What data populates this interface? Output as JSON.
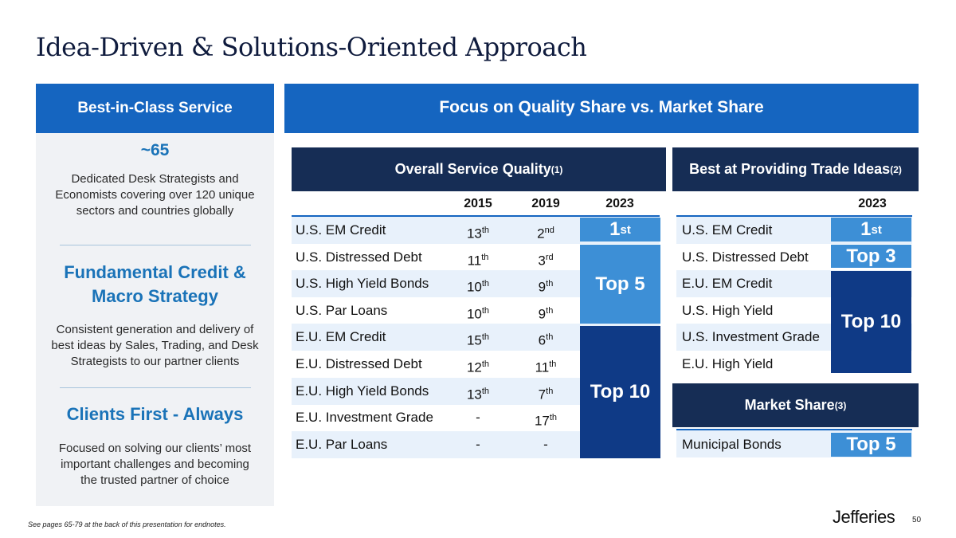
{
  "title": "Idea-Driven & Solutions-Oriented Approach",
  "left": {
    "header": "Best-in-Class Service",
    "sections": [
      {
        "heading": "~65",
        "text": "Dedicated Desk Strategists and Economists covering over 120 unique sectors and countries globally"
      },
      {
        "heading": "Fundamental Credit & Macro Strategy",
        "text": "Consistent generation and delivery of best ideas by Sales, Trading, and Desk Strategists to our partner clients"
      },
      {
        "heading": "Clients First - Always",
        "text": "Focused on solving our clients’ most important challenges and becoming the trusted partner of choice"
      }
    ]
  },
  "right": {
    "header": "Focus on Quality Share vs. Market Share",
    "overall": {
      "title": "Overall Service Quality",
      "note": "(1)",
      "years": [
        "2015",
        "2019",
        "2023"
      ],
      "rows": [
        {
          "label": "U.S. EM Credit",
          "y2015": "13",
          "s2015": "th",
          "y2019": "2",
          "s2019": "nd"
        },
        {
          "label": "U.S. Distressed Debt",
          "y2015": "11",
          "s2015": "th",
          "y2019": "3",
          "s2019": "rd"
        },
        {
          "label": "U.S. High Yield Bonds",
          "y2015": "10",
          "s2015": "th",
          "y2019": "9",
          "s2019": "th"
        },
        {
          "label": "U.S. Par Loans",
          "y2015": "10",
          "s2015": "th",
          "y2019": "9",
          "s2019": "th"
        },
        {
          "label": "E.U. EM Credit",
          "y2015": "15",
          "s2015": "th",
          "y2019": "6",
          "s2019": "th"
        },
        {
          "label": "E.U. Distressed Debt",
          "y2015": "12",
          "s2015": "th",
          "y2019": "11",
          "s2019": "th"
        },
        {
          "label": "E.U. High Yield Bonds",
          "y2015": "13",
          "s2015": "th",
          "y2019": "7",
          "s2019": "th"
        },
        {
          "label": "E.U. Investment Grade",
          "y2015": "-",
          "s2015": "",
          "y2019": "17",
          "s2019": "th"
        },
        {
          "label": "E.U. Par Loans",
          "y2015": "-",
          "s2015": "",
          "y2019": "-",
          "s2019": ""
        }
      ],
      "badges": {
        "first": "1",
        "first_sup": "st",
        "top5": "Top 5",
        "top10": "Top 10"
      }
    },
    "ideas": {
      "title": "Best at Providing Trade Ideas",
      "note": "(2)",
      "year": "2023",
      "rows": [
        "U.S. EM Credit",
        "U.S. Distressed Debt",
        "E.U. EM Credit",
        "U.S. High Yield",
        "U.S. Investment Grade",
        "E.U. High Yield"
      ],
      "badges": {
        "first": "1",
        "first_sup": "st",
        "top3": "Top 3",
        "top10": "Top 10"
      }
    },
    "market": {
      "title": "Market Share",
      "note": "(3)",
      "row": "Municipal Bonds",
      "badge": "Top 5"
    }
  },
  "footnote": "See pages 65-79 at the back of this presentation for endnotes.",
  "logo": "Jefferies",
  "page_number": "50"
}
